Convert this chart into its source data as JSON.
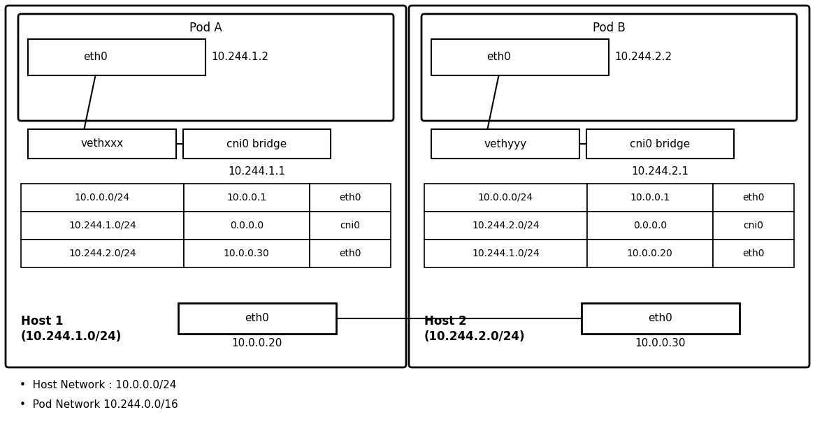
{
  "fig_width": 11.66,
  "fig_height": 6.1,
  "bg_color": "#ffffff",
  "host1": {
    "label": "Host 1",
    "sublabel": "(10.244.1.0/24)",
    "pod_label": "Pod A",
    "eth0_label": "eth0",
    "eth0_ip": "10.244.1.2",
    "veth_label": "vethxxx",
    "cni_label": "cni0 bridge",
    "cni_ip": "10.244.1.1",
    "eth0_host_label": "eth0",
    "eth0_host_ip": "10.0.0.20",
    "routes": [
      [
        "10.0.0.0/24",
        "10.0.0.1",
        "eth0"
      ],
      [
        "10.244.1.0/24",
        "0.0.0.0",
        "cni0"
      ],
      [
        "10.244.2.0/24",
        "10.0.0.30",
        "eth0"
      ]
    ]
  },
  "host2": {
    "label": "Host 2",
    "sublabel": "(10.244.2.0/24)",
    "pod_label": "Pod B",
    "eth0_label": "eth0",
    "eth0_ip": "10.244.2.2",
    "veth_label": "vethyyy",
    "cni_label": "cni0 bridge",
    "cni_ip": "10.244.2.1",
    "eth0_host_label": "eth0",
    "eth0_host_ip": "10.0.0.30",
    "routes": [
      [
        "10.0.0.0/24",
        "10.0.0.1",
        "eth0"
      ],
      [
        "10.244.2.0/24",
        "0.0.0.0",
        "cni0"
      ],
      [
        "10.244.1.0/24",
        "10.0.0.20",
        "eth0"
      ]
    ]
  },
  "bullet1": "Host Network : 10.0.0.0/24",
  "bullet2": "Pod Network 10.244.0.0/16"
}
